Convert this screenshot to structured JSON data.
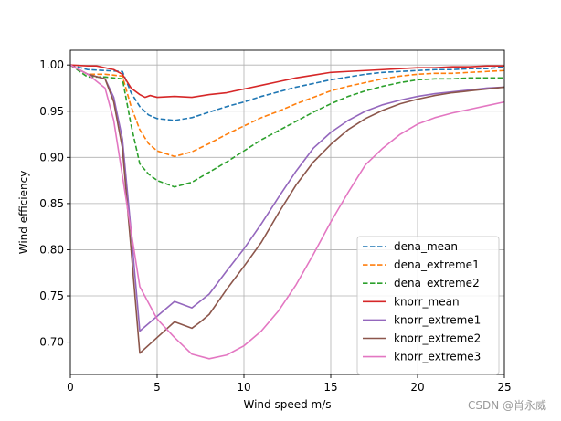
{
  "chart_data": {
    "type": "line",
    "xlabel": "Wind speed m/s",
    "ylabel": "Wind efficiency",
    "xlim": [
      0,
      25
    ],
    "ylim": [
      0.665,
      1.016
    ],
    "xticks": [
      0,
      5,
      10,
      15,
      20,
      25
    ],
    "yticks": [
      0.7,
      0.75,
      0.8,
      0.85,
      0.9,
      0.95,
      1.0
    ],
    "grid": true,
    "legend_position": "lower-right",
    "series": [
      {
        "name": "dena_mean",
        "color": "#1f77b4",
        "dash": "dashed",
        "points": [
          [
            0,
            1.0
          ],
          [
            1,
            0.995
          ],
          [
            2,
            0.994
          ],
          [
            3,
            0.993
          ],
          [
            3.5,
            0.97
          ],
          [
            4,
            0.955
          ],
          [
            4.5,
            0.946
          ],
          [
            5,
            0.942
          ],
          [
            6,
            0.94
          ],
          [
            7,
            0.943
          ],
          [
            8,
            0.949
          ],
          [
            9,
            0.955
          ],
          [
            10,
            0.96
          ],
          [
            11,
            0.966
          ],
          [
            12,
            0.971
          ],
          [
            13,
            0.976
          ],
          [
            14,
            0.98
          ],
          [
            15,
            0.984
          ],
          [
            16,
            0.987
          ],
          [
            17,
            0.99
          ],
          [
            18,
            0.992
          ],
          [
            19,
            0.993
          ],
          [
            20,
            0.994
          ],
          [
            21,
            0.995
          ],
          [
            22,
            0.995
          ],
          [
            23,
            0.996
          ],
          [
            24,
            0.996
          ],
          [
            25,
            0.998
          ]
        ]
      },
      {
        "name": "dena_extreme1",
        "color": "#ff7f0e",
        "dash": "dashed",
        "points": [
          [
            0,
            1.0
          ],
          [
            1,
            0.99
          ],
          [
            2,
            0.99
          ],
          [
            3,
            0.988
          ],
          [
            3.5,
            0.955
          ],
          [
            4,
            0.93
          ],
          [
            4.5,
            0.915
          ],
          [
            5,
            0.907
          ],
          [
            6,
            0.901
          ],
          [
            7,
            0.906
          ],
          [
            8,
            0.915
          ],
          [
            9,
            0.925
          ],
          [
            10,
            0.934
          ],
          [
            11,
            0.943
          ],
          [
            12,
            0.95
          ],
          [
            13,
            0.958
          ],
          [
            14,
            0.965
          ],
          [
            15,
            0.972
          ],
          [
            16,
            0.977
          ],
          [
            17,
            0.981
          ],
          [
            18,
            0.985
          ],
          [
            19,
            0.988
          ],
          [
            20,
            0.99
          ],
          [
            21,
            0.991
          ],
          [
            22,
            0.991
          ],
          [
            23,
            0.992
          ],
          [
            24,
            0.993
          ],
          [
            25,
            0.994
          ]
        ]
      },
      {
        "name": "dena_extreme2",
        "color": "#2ca02c",
        "dash": "dashed",
        "points": [
          [
            0,
            1.0
          ],
          [
            1,
            0.987
          ],
          [
            2,
            0.987
          ],
          [
            3,
            0.985
          ],
          [
            3.5,
            0.935
          ],
          [
            4,
            0.893
          ],
          [
            4.5,
            0.882
          ],
          [
            5,
            0.875
          ],
          [
            6,
            0.868
          ],
          [
            7,
            0.873
          ],
          [
            8,
            0.884
          ],
          [
            9,
            0.895
          ],
          [
            10,
            0.907
          ],
          [
            11,
            0.919
          ],
          [
            12,
            0.929
          ],
          [
            13,
            0.939
          ],
          [
            14,
            0.949
          ],
          [
            15,
            0.958
          ],
          [
            16,
            0.966
          ],
          [
            17,
            0.972
          ],
          [
            18,
            0.977
          ],
          [
            19,
            0.981
          ],
          [
            20,
            0.984
          ],
          [
            21,
            0.985
          ],
          [
            22,
            0.985
          ],
          [
            23,
            0.986
          ],
          [
            24,
            0.986
          ],
          [
            25,
            0.986
          ]
        ]
      },
      {
        "name": "knorr_mean",
        "color": "#d62728",
        "dash": "solid",
        "points": [
          [
            0,
            1.0
          ],
          [
            1,
            0.999
          ],
          [
            1.5,
            0.999
          ],
          [
            2,
            0.997
          ],
          [
            2.5,
            0.995
          ],
          [
            3,
            0.99
          ],
          [
            3.5,
            0.975
          ],
          [
            4,
            0.968
          ],
          [
            4.3,
            0.965
          ],
          [
            4.6,
            0.967
          ],
          [
            5,
            0.965
          ],
          [
            6,
            0.966
          ],
          [
            7,
            0.965
          ],
          [
            8,
            0.968
          ],
          [
            9,
            0.97
          ],
          [
            10,
            0.974
          ],
          [
            11,
            0.978
          ],
          [
            12,
            0.982
          ],
          [
            13,
            0.986
          ],
          [
            14,
            0.989
          ],
          [
            15,
            0.992
          ],
          [
            16,
            0.993
          ],
          [
            17,
            0.994
          ],
          [
            18,
            0.995
          ],
          [
            19,
            0.996
          ],
          [
            20,
            0.997
          ],
          [
            21,
            0.997
          ],
          [
            22,
            0.998
          ],
          [
            23,
            0.998
          ],
          [
            24,
            0.999
          ],
          [
            25,
            0.999
          ]
        ]
      },
      {
        "name": "knorr_extreme1",
        "color": "#9467bd",
        "dash": "solid",
        "points": [
          [
            0,
            1.0
          ],
          [
            1,
            0.99
          ],
          [
            2,
            0.985
          ],
          [
            2.5,
            0.965
          ],
          [
            3,
            0.92
          ],
          [
            3.5,
            0.82
          ],
          [
            4,
            0.712
          ],
          [
            5,
            0.728
          ],
          [
            6,
            0.744
          ],
          [
            7,
            0.737
          ],
          [
            8,
            0.752
          ],
          [
            9,
            0.777
          ],
          [
            10,
            0.801
          ],
          [
            11,
            0.828
          ],
          [
            12,
            0.857
          ],
          [
            13,
            0.885
          ],
          [
            14,
            0.91
          ],
          [
            15,
            0.927
          ],
          [
            16,
            0.94
          ],
          [
            17,
            0.95
          ],
          [
            18,
            0.957
          ],
          [
            19,
            0.962
          ],
          [
            20,
            0.966
          ],
          [
            21,
            0.969
          ],
          [
            22,
            0.971
          ],
          [
            23,
            0.973
          ],
          [
            24,
            0.975
          ],
          [
            25,
            0.976
          ]
        ]
      },
      {
        "name": "knorr_extreme2",
        "color": "#8c564b",
        "dash": "solid",
        "points": [
          [
            0,
            1.0
          ],
          [
            1,
            0.99
          ],
          [
            2,
            0.985
          ],
          [
            2.5,
            0.96
          ],
          [
            3,
            0.91
          ],
          [
            3.5,
            0.8
          ],
          [
            4,
            0.688
          ],
          [
            5,
            0.705
          ],
          [
            6,
            0.722
          ],
          [
            7,
            0.715
          ],
          [
            7.5,
            0.722
          ],
          [
            8,
            0.73
          ],
          [
            9,
            0.757
          ],
          [
            10,
            0.782
          ],
          [
            11,
            0.808
          ],
          [
            12,
            0.84
          ],
          [
            13,
            0.87
          ],
          [
            14,
            0.895
          ],
          [
            15,
            0.914
          ],
          [
            16,
            0.93
          ],
          [
            17,
            0.942
          ],
          [
            18,
            0.951
          ],
          [
            19,
            0.958
          ],
          [
            20,
            0.963
          ],
          [
            21,
            0.967
          ],
          [
            22,
            0.97
          ],
          [
            23,
            0.972
          ],
          [
            24,
            0.974
          ],
          [
            25,
            0.976
          ]
        ]
      },
      {
        "name": "knorr_extreme3",
        "color": "#e377c2",
        "dash": "solid",
        "points": [
          [
            0,
            1.0
          ],
          [
            1,
            0.99
          ],
          [
            2,
            0.975
          ],
          [
            2.5,
            0.94
          ],
          [
            3,
            0.88
          ],
          [
            3.5,
            0.82
          ],
          [
            4,
            0.76
          ],
          [
            5,
            0.725
          ],
          [
            6,
            0.705
          ],
          [
            7,
            0.687
          ],
          [
            8,
            0.682
          ],
          [
            9,
            0.686
          ],
          [
            10,
            0.696
          ],
          [
            11,
            0.712
          ],
          [
            12,
            0.734
          ],
          [
            13,
            0.762
          ],
          [
            14,
            0.795
          ],
          [
            15,
            0.83
          ],
          [
            16,
            0.862
          ],
          [
            17,
            0.892
          ],
          [
            18,
            0.91
          ],
          [
            19,
            0.925
          ],
          [
            20,
            0.936
          ],
          [
            21,
            0.943
          ],
          [
            22,
            0.948
          ],
          [
            23,
            0.952
          ],
          [
            24,
            0.956
          ],
          [
            25,
            0.96
          ]
        ]
      }
    ]
  },
  "watermark": {
    "text": "CSDN @肖永威"
  }
}
